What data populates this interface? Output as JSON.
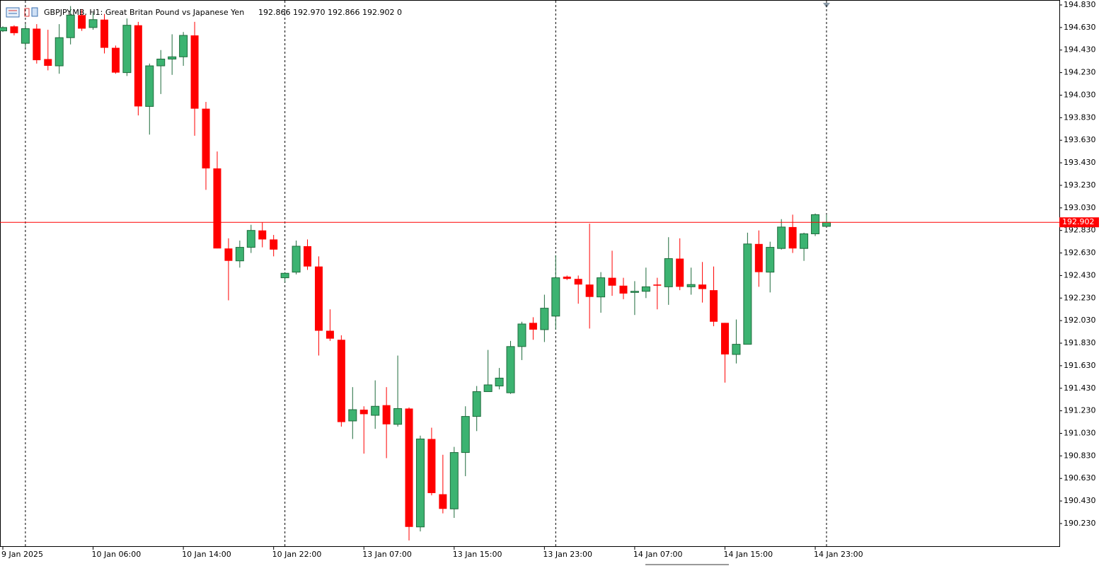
{
  "chart_data": {
    "type": "candlestick",
    "title": "GBPJPY.MB, H1:  Great Britan Pound vs Japanese Yen",
    "quote": "192.866 192.970 192.866 192.902  0",
    "categories": [
      "9 Jan 2025",
      null,
      null,
      null,
      null,
      null,
      null,
      null,
      "10 Jan 06:00",
      null,
      null,
      null,
      null,
      null,
      null,
      null,
      "10 Jan 14:00",
      null,
      null,
      null,
      null,
      null,
      null,
      null,
      "10 Jan 22:00",
      null,
      null,
      null,
      null,
      null,
      null,
      null,
      "13 Jan 07:00",
      null,
      null,
      null,
      null,
      null,
      null,
      null,
      "13 Jan 15:00",
      null,
      null,
      null,
      null,
      null,
      null,
      null,
      "13 Jan 23:00",
      null,
      null,
      null,
      null,
      null,
      null,
      null,
      "14 Jan 07:00",
      null,
      null,
      null,
      null,
      null,
      null,
      null,
      "14 Jan 15:00",
      null,
      null,
      null,
      null,
      null,
      null,
      null,
      "14 Jan 23:00",
      null
    ],
    "open": [
      194.6,
      194.64,
      194.49,
      194.62,
      194.35,
      194.29,
      194.54,
      194.74,
      194.63,
      194.7,
      194.45,
      194.23,
      194.65,
      193.93,
      194.29,
      194.35,
      194.37,
      194.56,
      193.91,
      193.38,
      192.67,
      192.56,
      192.68,
      192.83,
      192.75,
      192.41,
      192.46,
      192.69,
      192.51,
      191.94,
      191.86,
      191.14,
      191.24,
      191.19,
      191.28,
      191.11,
      191.25,
      190.2,
      190.98,
      190.49,
      190.36,
      190.86,
      191.18,
      191.4,
      191.45,
      191.39,
      191.8,
      192.01,
      191.95,
      192.07,
      192.42,
      192.4,
      192.35,
      192.24,
      192.41,
      192.34,
      192.28,
      192.29,
      192.35,
      192.33,
      192.58,
      192.33,
      192.35,
      192.3,
      192.01,
      191.73,
      191.82,
      192.71,
      192.46,
      192.67,
      192.86,
      192.67,
      192.8,
      192.866
    ],
    "high": [
      194.64,
      194.65,
      194.66,
      194.66,
      194.61,
      194.66,
      194.82,
      194.79,
      194.76,
      194.75,
      194.47,
      194.71,
      194.68,
      194.31,
      194.43,
      194.57,
      194.59,
      194.68,
      193.97,
      193.53,
      192.76,
      192.74,
      192.88,
      192.9,
      192.79,
      192.46,
      192.74,
      192.75,
      192.6,
      192.13,
      191.9,
      191.44,
      191.27,
      191.5,
      191.44,
      191.72,
      191.26,
      191.01,
      191.08,
      190.84,
      190.91,
      191.27,
      191.45,
      191.77,
      191.61,
      191.85,
      192.02,
      192.06,
      192.26,
      192.61,
      192.43,
      192.43,
      192.89,
      192.46,
      192.65,
      192.41,
      192.38,
      192.5,
      192.41,
      192.77,
      192.76,
      192.5,
      192.55,
      192.51,
      192.01,
      192.04,
      192.81,
      192.83,
      192.73,
      192.93,
      192.97,
      192.81,
      192.98,
      192.97
    ],
    "low": [
      194.59,
      194.56,
      194.45,
      194.31,
      194.25,
      194.22,
      194.48,
      194.6,
      194.61,
      194.4,
      194.22,
      194.2,
      193.85,
      193.68,
      194.04,
      194.21,
      194.29,
      193.67,
      193.19,
      192.67,
      192.21,
      192.5,
      192.63,
      192.68,
      192.6,
      192.37,
      192.44,
      192.48,
      191.72,
      191.85,
      191.09,
      190.98,
      190.85,
      191.07,
      190.81,
      191.09,
      190.08,
      190.16,
      190.48,
      190.32,
      190.28,
      190.65,
      191.05,
      191.4,
      191.42,
      191.38,
      191.68,
      191.86,
      191.84,
      191.95,
      192.39,
      192.18,
      191.96,
      192.1,
      192.25,
      192.22,
      192.08,
      192.23,
      192.13,
      192.17,
      192.3,
      192.26,
      192.19,
      191.98,
      191.48,
      191.65,
      191.82,
      192.33,
      192.28,
      192.66,
      192.63,
      192.56,
      192.78,
      192.866
    ],
    "close": [
      194.63,
      194.58,
      194.62,
      194.34,
      194.29,
      194.54,
      194.74,
      194.62,
      194.7,
      194.45,
      194.23,
      194.65,
      193.93,
      194.29,
      194.35,
      194.37,
      194.56,
      193.91,
      193.38,
      192.67,
      192.56,
      192.68,
      192.83,
      192.75,
      192.66,
      192.45,
      192.69,
      192.51,
      191.94,
      191.87,
      191.13,
      191.24,
      191.2,
      191.27,
      191.11,
      191.25,
      190.2,
      190.98,
      190.5,
      190.36,
      190.86,
      191.18,
      191.4,
      191.46,
      191.52,
      191.8,
      192.0,
      191.95,
      192.14,
      192.41,
      192.4,
      192.35,
      192.24,
      192.41,
      192.34,
      192.27,
      192.29,
      192.33,
      192.34,
      192.58,
      192.33,
      192.35,
      192.31,
      192.02,
      191.73,
      191.82,
      192.71,
      192.46,
      192.68,
      192.86,
      192.67,
      192.8,
      192.97,
      192.902
    ],
    "up_color": "#3cb371",
    "down_color": "#ff0000",
    "current_price": {
      "value": 192.902,
      "label": "192.902",
      "color": "#ff0000"
    },
    "ylim": [
      190.029,
      194.874
    ],
    "yticks": [
      {
        "value": 194.83,
        "label": "194.830"
      },
      {
        "value": 194.63,
        "label": "194.630"
      },
      {
        "value": 194.43,
        "label": "194.430"
      },
      {
        "value": 194.23,
        "label": "194.230"
      },
      {
        "value": 194.03,
        "label": "194.030"
      },
      {
        "value": 193.83,
        "label": "193.830"
      },
      {
        "value": 193.63,
        "label": "193.630"
      },
      {
        "value": 193.43,
        "label": "193.430"
      },
      {
        "value": 193.23,
        "label": "193.230"
      },
      {
        "value": 193.03,
        "label": "193.030"
      },
      {
        "value": 192.83,
        "label": "192.830"
      },
      {
        "value": 192.63,
        "label": "192.630"
      },
      {
        "value": 192.43,
        "label": "192.430"
      },
      {
        "value": 192.23,
        "label": "192.230"
      },
      {
        "value": 192.03,
        "label": "192.030"
      },
      {
        "value": 191.83,
        "label": "191.830"
      },
      {
        "value": 191.63,
        "label": "191.630"
      },
      {
        "value": 191.43,
        "label": "191.430"
      },
      {
        "value": 191.23,
        "label": "191.230"
      },
      {
        "value": 191.03,
        "label": "191.030"
      },
      {
        "value": 190.83,
        "label": "190.830"
      },
      {
        "value": 190.63,
        "label": "190.630"
      },
      {
        "value": 190.43,
        "label": "190.430"
      },
      {
        "value": 190.23,
        "label": "190.230"
      }
    ],
    "grid": false
  }
}
